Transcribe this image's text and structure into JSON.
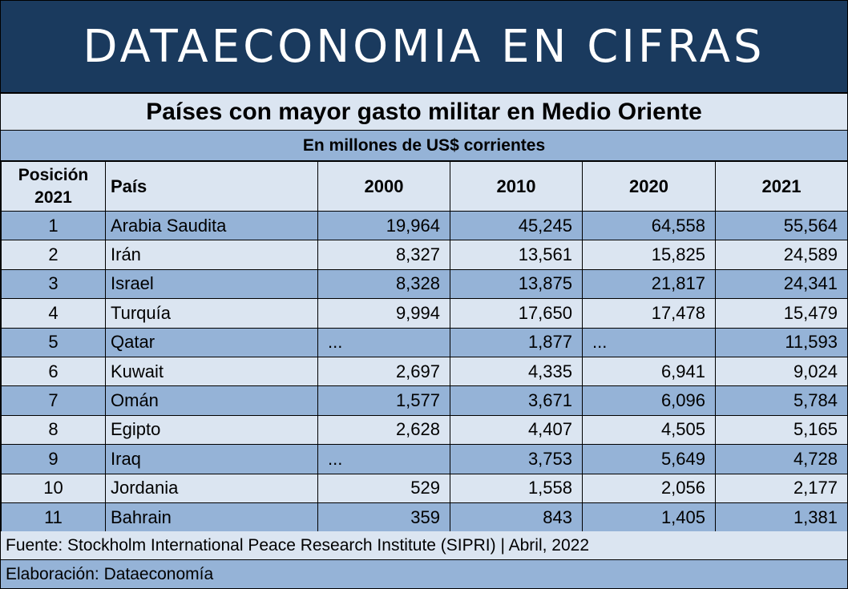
{
  "banner": "DATAECONOMIA EN CIFRAS",
  "title": "Países con mayor gasto militar en Medio Oriente",
  "subtitle": "En millones de US$ corrientes",
  "headers": {
    "position_line1": "Posición",
    "position_line2": "2021",
    "country": "País",
    "y2000": "2000",
    "y2010": "2010",
    "y2020": "2020",
    "y2021": "2021"
  },
  "rows": [
    {
      "pos": "1",
      "country": "Arabia Saudita",
      "y2000": "19,964",
      "y2010": "45,245",
      "y2020": "64,558",
      "y2021": "55,564"
    },
    {
      "pos": "2",
      "country": "Irán",
      "y2000": "8,327",
      "y2010": "13,561",
      "y2020": "15,825",
      "y2021": "24,589"
    },
    {
      "pos": "3",
      "country": "Israel",
      "y2000": "8,328",
      "y2010": "13,875",
      "y2020": "21,817",
      "y2021": "24,341"
    },
    {
      "pos": "4",
      "country": "Turquía",
      "y2000": "9,994",
      "y2010": "17,650",
      "y2020": "17,478",
      "y2021": "15,479"
    },
    {
      "pos": "5",
      "country": "Qatar",
      "y2000": "...",
      "y2010": "1,877",
      "y2020": "...",
      "y2021": "11,593"
    },
    {
      "pos": "6",
      "country": "Kuwait",
      "y2000": "2,697",
      "y2010": "4,335",
      "y2020": "6,941",
      "y2021": "9,024"
    },
    {
      "pos": "7",
      "country": "Omán",
      "y2000": "1,577",
      "y2010": "3,671",
      "y2020": "6,096",
      "y2021": "5,784"
    },
    {
      "pos": "8",
      "country": "Egipto",
      "y2000": "2,628",
      "y2010": "4,407",
      "y2020": "4,505",
      "y2021": "5,165"
    },
    {
      "pos": "9",
      "country": "Iraq",
      "y2000": "...",
      "y2010": "3,753",
      "y2020": "5,649",
      "y2021": "4,728"
    },
    {
      "pos": "10",
      "country": "Jordania",
      "y2000": "529",
      "y2010": "1,558",
      "y2020": "2,056",
      "y2021": "2,177"
    },
    {
      "pos": "11",
      "country": "Bahrain",
      "y2000": "359",
      "y2010": "843",
      "y2020": "1,405",
      "y2021": "1,381"
    }
  ],
  "footer": {
    "source": "Fuente: Stockholm International Peace Research Institute (SIPRI) | Abril, 2022",
    "credit": "Elaboración: Dataeconomía"
  },
  "colors": {
    "banner_bg": "#1a3a5e",
    "row_dark": "#95b3d7",
    "row_light": "#dbe5f1"
  }
}
